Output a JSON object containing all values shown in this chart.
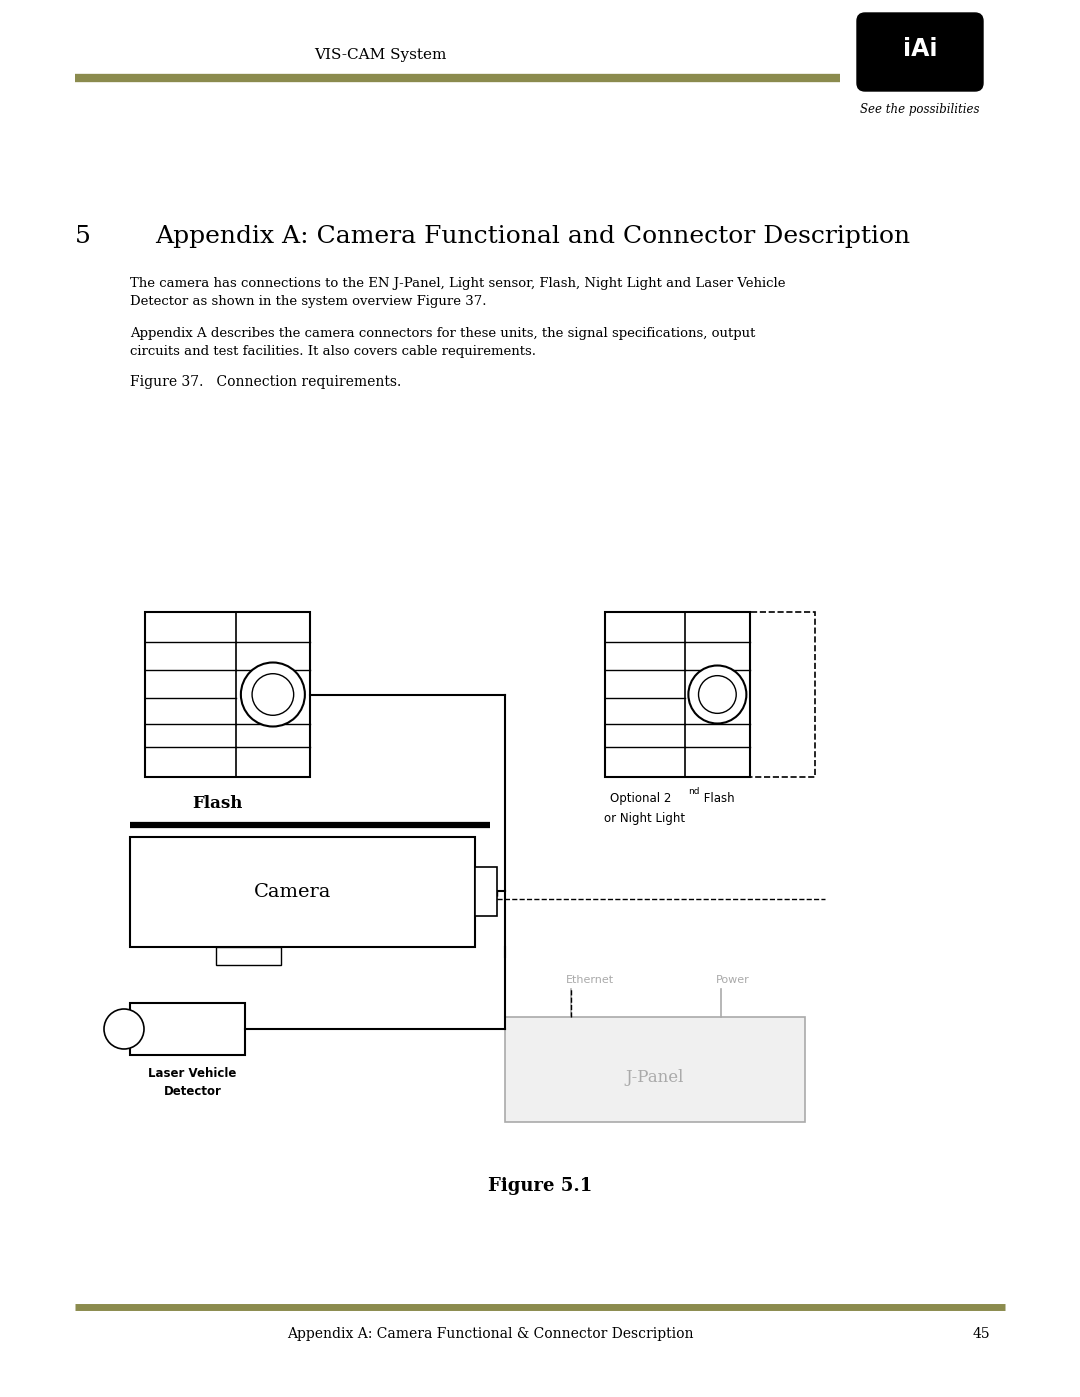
{
  "page_width": 10.8,
  "page_height": 13.97,
  "bg_color": "#ffffff",
  "header_text": "VIS-CAM System",
  "header_line_color": "#8b8b4e",
  "logo_subtitle": "See the possibilities",
  "footer_line_color": "#8b8b4e",
  "footer_text": "Appendix A: Camera Functional & Connector Description",
  "footer_page": "45",
  "section_number": "5",
  "section_title": "Appendix A: Camera Functional and Connector Description",
  "para1": "The camera has connections to the EN J-Panel, Light sensor, Flash, Night Light and Laser Vehicle\nDetector as shown in the system overview Figure 37.",
  "para2": "Appendix A describes the camera connectors for these units, the signal specifications, output\ncircuits and test facilities. It also covers cable requirements.",
  "fig_caption": "Figure 37.   Connection requirements.",
  "fig_caption2": "Figure 5.1",
  "accent_color": "#8b8b4e",
  "gray_color": "#aaaaaa"
}
